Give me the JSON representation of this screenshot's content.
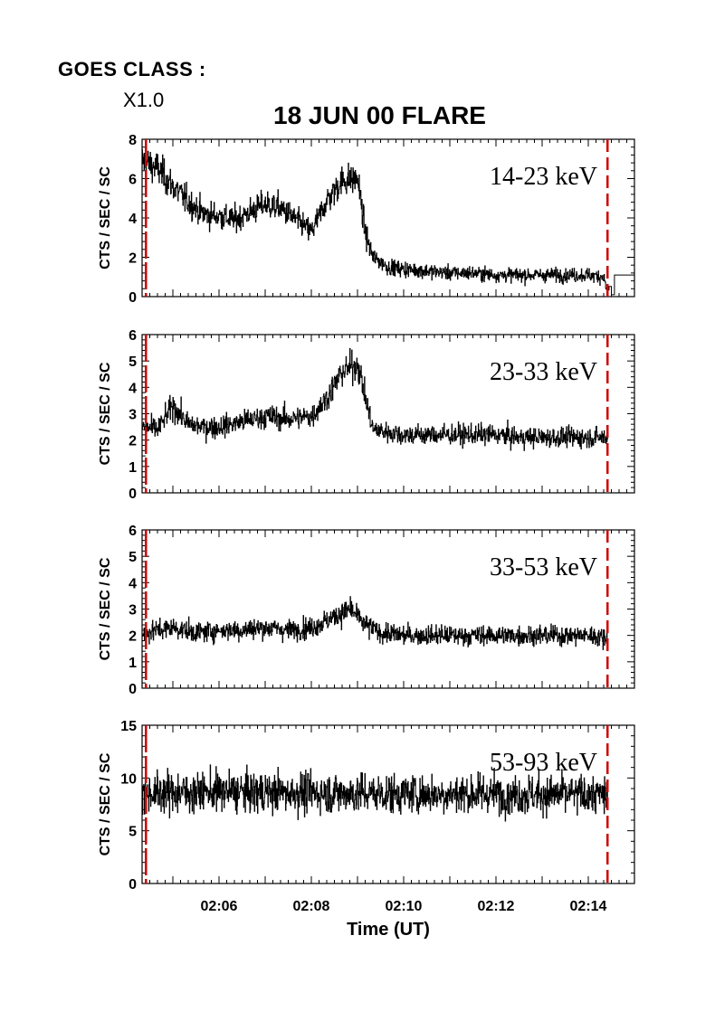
{
  "header": {
    "goes_label": "GOES CLASS :",
    "goes_value": "X1.0",
    "title": "18 JUN 00 FLARE"
  },
  "chart_data": [
    {
      "type": "line",
      "band_label": "14-23 keV",
      "ylabel": "CTS / SEC / SC",
      "ylim": [
        0,
        8
      ],
      "yticks": [
        0,
        2,
        4,
        6,
        8
      ],
      "xlim": [
        "02:04:20",
        "02:15:00"
      ],
      "series": [
        {
          "x": [
            "02:04:20",
            "02:04:40",
            "02:05:00",
            "02:05:20",
            "02:05:40",
            "02:06:00",
            "02:06:20",
            "02:06:40",
            "02:07:00",
            "02:07:20",
            "02:07:40",
            "02:08:00",
            "02:08:20",
            "02:08:40",
            "02:09:00",
            "02:09:10",
            "02:09:20",
            "02:09:40",
            "02:10:00",
            "02:10:30",
            "02:11:00",
            "02:11:30",
            "02:12:00",
            "02:12:30",
            "02:13:00",
            "02:13:30",
            "02:14:00",
            "02:14:20",
            "02:14:25",
            "02:14:30",
            "02:15:00"
          ],
          "values": [
            6.9,
            6.5,
            5.6,
            4.8,
            4.2,
            4.1,
            3.9,
            4.3,
            4.7,
            4.5,
            3.9,
            3.3,
            4.9,
            5.9,
            6.0,
            3.2,
            2.0,
            1.5,
            1.4,
            1.3,
            1.2,
            1.2,
            1.1,
            1.1,
            1.1,
            1.1,
            1.1,
            1.0,
            0.1,
            1.1,
            1.1
          ]
        }
      ]
    },
    {
      "type": "line",
      "band_label": "23-33 keV",
      "ylabel": "CTS / SEC / SC",
      "ylim": [
        0,
        6
      ],
      "yticks": [
        0,
        1,
        2,
        3,
        4,
        5,
        6
      ],
      "xlim": [
        "02:04:20",
        "02:15:00"
      ],
      "series": [
        {
          "x": [
            "02:04:20",
            "02:04:40",
            "02:05:00",
            "02:05:20",
            "02:05:40",
            "02:06:00",
            "02:06:30",
            "02:07:00",
            "02:07:30",
            "02:08:00",
            "02:08:20",
            "02:08:40",
            "02:09:00",
            "02:09:10",
            "02:09:20",
            "02:09:40",
            "02:10:00",
            "02:10:30",
            "02:11:00",
            "02:11:30",
            "02:12:00",
            "02:12:30",
            "02:13:00",
            "02:13:30",
            "02:14:00",
            "02:14:25"
          ],
          "values": [
            2.5,
            2.4,
            3.3,
            2.6,
            2.5,
            2.5,
            2.7,
            2.9,
            2.8,
            2.9,
            3.6,
            4.6,
            4.9,
            3.6,
            2.4,
            2.3,
            2.2,
            2.2,
            2.2,
            2.2,
            2.2,
            2.1,
            2.1,
            2.1,
            2.1,
            2.1
          ]
        }
      ]
    },
    {
      "type": "line",
      "band_label": "33-53 keV",
      "ylabel": "CTS / SEC / SC",
      "ylim": [
        0,
        6
      ],
      "yticks": [
        0,
        1,
        2,
        3,
        4,
        5,
        6
      ],
      "xlim": [
        "02:04:20",
        "02:15:00"
      ],
      "series": [
        {
          "x": [
            "02:04:20",
            "02:05:00",
            "02:05:30",
            "02:06:00",
            "02:06:30",
            "02:07:00",
            "02:07:30",
            "02:08:00",
            "02:08:30",
            "02:08:50",
            "02:09:10",
            "02:09:30",
            "02:10:00",
            "02:11:00",
            "02:12:00",
            "02:13:00",
            "02:14:00",
            "02:14:25"
          ],
          "values": [
            2.1,
            2.3,
            2.1,
            2.2,
            2.2,
            2.3,
            2.2,
            2.3,
            2.7,
            3.0,
            2.4,
            2.1,
            2.0,
            2.0,
            2.0,
            2.0,
            2.0,
            1.9
          ]
        }
      ]
    },
    {
      "type": "line",
      "band_label": "53-93 keV",
      "ylabel": "CTS / SEC / SC",
      "ylim": [
        0,
        15
      ],
      "yticks": [
        0,
        5,
        10,
        15
      ],
      "xlabel": "Time (UT)",
      "xticks": [
        "02:06",
        "02:08",
        "02:10",
        "02:12",
        "02:14"
      ],
      "xlim": [
        "02:04:20",
        "02:15:00"
      ],
      "series": [
        {
          "x": [
            "02:04:20",
            "02:06:00",
            "02:08:00",
            "02:10:00",
            "02:12:00",
            "02:14:00",
            "02:14:25"
          ],
          "values": [
            8.6,
            8.7,
            8.6,
            8.5,
            8.5,
            8.4,
            8.4
          ]
        }
      ]
    }
  ],
  "markers": {
    "start_time": "02:04:25",
    "end_time": "02:14:25",
    "color": "#cc0000"
  },
  "colors": {
    "data": "#000000",
    "axes": "#000000",
    "marker": "#cc0000"
  }
}
